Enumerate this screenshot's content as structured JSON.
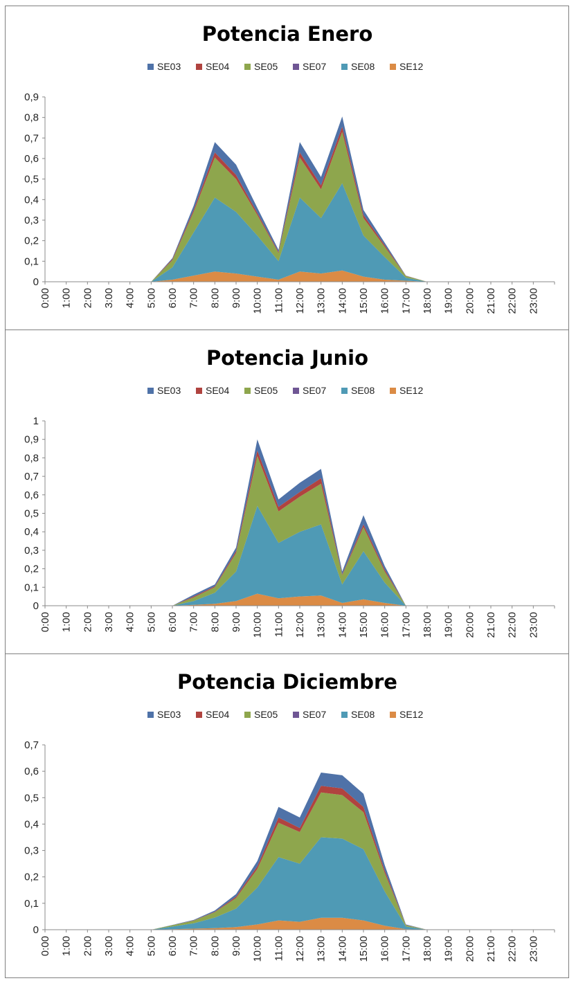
{
  "colors": {
    "SE03": "#4f72a8",
    "SE04": "#b0433f",
    "SE05": "#8ea64d",
    "SE07": "#6f5694",
    "SE08": "#4f9ab5",
    "SE12": "#db8b45"
  },
  "chart_data": [
    {
      "type": "area",
      "stacked": true,
      "title": "Potencia Enero",
      "legend": [
        "SE03",
        "SE04",
        "SE05",
        "SE07",
        "SE08",
        "SE12"
      ],
      "legend_position": "top",
      "categories": [
        "0:00",
        "1:00",
        "2:00",
        "3:00",
        "4:00",
        "5:00",
        "6:00",
        "7:00",
        "8:00",
        "9:00",
        "10:00",
        "11:00",
        "12:00",
        "13:00",
        "14:00",
        "15:00",
        "16:00",
        "17:00",
        "18:00",
        "19:00",
        "20:00",
        "21:00",
        "22:00",
        "23:00"
      ],
      "yticks": [
        "0",
        "0,1",
        "0,2",
        "0,3",
        "0,4",
        "0,5",
        "0,6",
        "0,7",
        "0,8",
        "0,9"
      ],
      "ylim": [
        0,
        0.9
      ],
      "series": [
        {
          "name": "SE12",
          "values": [
            0,
            0,
            0,
            0,
            0,
            0,
            0.01,
            0.03,
            0.05,
            0.04,
            0.025,
            0.01,
            0.05,
            0.04,
            0.055,
            0.025,
            0.01,
            0.005,
            0,
            0,
            0,
            0,
            0,
            0
          ]
        },
        {
          "name": "SE08",
          "values": [
            0,
            0,
            0,
            0,
            0,
            0,
            0.06,
            0.21,
            0.36,
            0.3,
            0.2,
            0.09,
            0.36,
            0.27,
            0.425,
            0.2,
            0.11,
            0.015,
            0,
            0,
            0,
            0,
            0,
            0
          ]
        },
        {
          "name": "SE07",
          "values": [
            0,
            0,
            0,
            0,
            0,
            0,
            0,
            0,
            0,
            0,
            0,
            0,
            0,
            0,
            0,
            0,
            0,
            0,
            0,
            0,
            0,
            0,
            0,
            0
          ]
        },
        {
          "name": "SE05",
          "values": [
            0,
            0,
            0,
            0,
            0,
            0,
            0.035,
            0.1,
            0.195,
            0.16,
            0.1,
            0.04,
            0.195,
            0.14,
            0.25,
            0.085,
            0.05,
            0.008,
            0,
            0,
            0,
            0,
            0,
            0
          ]
        },
        {
          "name": "SE04",
          "values": [
            0,
            0,
            0,
            0,
            0,
            0,
            0.005,
            0.01,
            0.025,
            0.02,
            0.01,
            0.005,
            0.025,
            0.02,
            0.025,
            0.015,
            0.008,
            0.001,
            0,
            0,
            0,
            0,
            0,
            0
          ]
        },
        {
          "name": "SE03",
          "values": [
            0,
            0,
            0,
            0,
            0,
            0,
            0.005,
            0.02,
            0.05,
            0.05,
            0.025,
            0.01,
            0.05,
            0.04,
            0.05,
            0.025,
            0.012,
            0.001,
            0,
            0,
            0,
            0,
            0,
            0
          ]
        }
      ]
    },
    {
      "type": "area",
      "stacked": true,
      "title": "Potencia Junio",
      "legend": [
        "SE03",
        "SE04",
        "SE05",
        "SE07",
        "SE08",
        "SE12"
      ],
      "legend_position": "top",
      "categories": [
        "0:00",
        "1:00",
        "2:00",
        "3:00",
        "4:00",
        "5:00",
        "6:00",
        "7:00",
        "8:00",
        "9:00",
        "10:00",
        "11:00",
        "12:00",
        "13:00",
        "14:00",
        "15:00",
        "16:00",
        "17:00",
        "18:00",
        "19:00",
        "20:00",
        "21:00",
        "22:00",
        "23:00"
      ],
      "yticks": [
        "0",
        "0,1",
        "0,2",
        "0,3",
        "0,4",
        "0,5",
        "0,6",
        "0,7",
        "0,8",
        "0,9",
        "1"
      ],
      "ylim": [
        0,
        1
      ],
      "series": [
        {
          "name": "SE12",
          "values": [
            0,
            0,
            0,
            0,
            0,
            0,
            0,
            0.005,
            0.01,
            0.025,
            0.065,
            0.04,
            0.05,
            0.055,
            0.015,
            0.035,
            0.015,
            0,
            0,
            0,
            0,
            0,
            0,
            0
          ]
        },
        {
          "name": "SE08",
          "values": [
            0,
            0,
            0,
            0,
            0,
            0,
            0,
            0.02,
            0.06,
            0.16,
            0.475,
            0.3,
            0.35,
            0.385,
            0.1,
            0.26,
            0.11,
            0,
            0,
            0,
            0,
            0,
            0,
            0
          ]
        },
        {
          "name": "SE07",
          "values": [
            0,
            0,
            0,
            0,
            0,
            0,
            0,
            0,
            0,
            0,
            0,
            0,
            0,
            0,
            0,
            0,
            0,
            0,
            0,
            0,
            0,
            0,
            0,
            0
          ]
        },
        {
          "name": "SE05",
          "values": [
            0,
            0,
            0,
            0,
            0,
            0,
            0,
            0.02,
            0.03,
            0.1,
            0.27,
            0.17,
            0.19,
            0.22,
            0.05,
            0.13,
            0.06,
            0,
            0,
            0,
            0,
            0,
            0,
            0
          ]
        },
        {
          "name": "SE04",
          "values": [
            0,
            0,
            0,
            0,
            0,
            0,
            0,
            0.005,
            0.005,
            0.01,
            0.03,
            0.025,
            0.025,
            0.03,
            0.005,
            0.015,
            0.01,
            0,
            0,
            0,
            0,
            0,
            0,
            0
          ]
        },
        {
          "name": "SE03",
          "values": [
            0,
            0,
            0,
            0,
            0,
            0,
            0,
            0.01,
            0.01,
            0.02,
            0.06,
            0.04,
            0.05,
            0.05,
            0.015,
            0.05,
            0.02,
            0,
            0,
            0,
            0,
            0,
            0,
            0
          ]
        }
      ]
    },
    {
      "type": "area",
      "stacked": true,
      "title": "Potencia Diciembre",
      "legend": [
        "SE03",
        "SE04",
        "SE05",
        "SE07",
        "SE08",
        "SE12"
      ],
      "legend_position": "top",
      "categories": [
        "0:00",
        "1:00",
        "2:00",
        "3:00",
        "4:00",
        "5:00",
        "6:00",
        "7:00",
        "8:00",
        "9:00",
        "10:00",
        "11:00",
        "12:00",
        "13:00",
        "14:00",
        "15:00",
        "16:00",
        "17:00",
        "18:00",
        "19:00",
        "20:00",
        "21:00",
        "22:00",
        "23:00"
      ],
      "yticks": [
        "0",
        "0,1",
        "0,2",
        "0,3",
        "0,4",
        "0,5",
        "0,6",
        "0,7"
      ],
      "ylim": [
        0,
        0.7
      ],
      "series": [
        {
          "name": "SE12",
          "values": [
            0,
            0,
            0,
            0,
            0,
            0,
            0.002,
            0.004,
            0.006,
            0.01,
            0.02,
            0.035,
            0.03,
            0.045,
            0.045,
            0.035,
            0.015,
            0.002,
            0,
            0,
            0,
            0,
            0,
            0
          ]
        },
        {
          "name": "SE08",
          "values": [
            0,
            0,
            0,
            0,
            0,
            0,
            0.01,
            0.02,
            0.04,
            0.07,
            0.14,
            0.24,
            0.22,
            0.305,
            0.3,
            0.27,
            0.13,
            0.01,
            0,
            0,
            0,
            0,
            0,
            0
          ]
        },
        {
          "name": "SE07",
          "values": [
            0,
            0,
            0,
            0,
            0,
            0,
            0,
            0,
            0,
            0,
            0,
            0,
            0,
            0,
            0,
            0,
            0,
            0,
            0,
            0,
            0,
            0,
            0,
            0
          ]
        },
        {
          "name": "SE05",
          "values": [
            0,
            0,
            0,
            0,
            0,
            0,
            0.005,
            0.01,
            0.02,
            0.04,
            0.07,
            0.13,
            0.12,
            0.17,
            0.165,
            0.14,
            0.07,
            0.005,
            0,
            0,
            0,
            0,
            0,
            0
          ]
        },
        {
          "name": "SE04",
          "values": [
            0,
            0,
            0,
            0,
            0,
            0,
            0,
            0.001,
            0.002,
            0.005,
            0.01,
            0.02,
            0.015,
            0.025,
            0.025,
            0.02,
            0.01,
            0.001,
            0,
            0,
            0,
            0,
            0,
            0
          ]
        },
        {
          "name": "SE03",
          "values": [
            0,
            0,
            0,
            0,
            0,
            0,
            0.001,
            0.002,
            0.005,
            0.01,
            0.02,
            0.04,
            0.04,
            0.05,
            0.05,
            0.05,
            0.02,
            0.002,
            0,
            0,
            0,
            0,
            0,
            0
          ]
        }
      ]
    }
  ]
}
